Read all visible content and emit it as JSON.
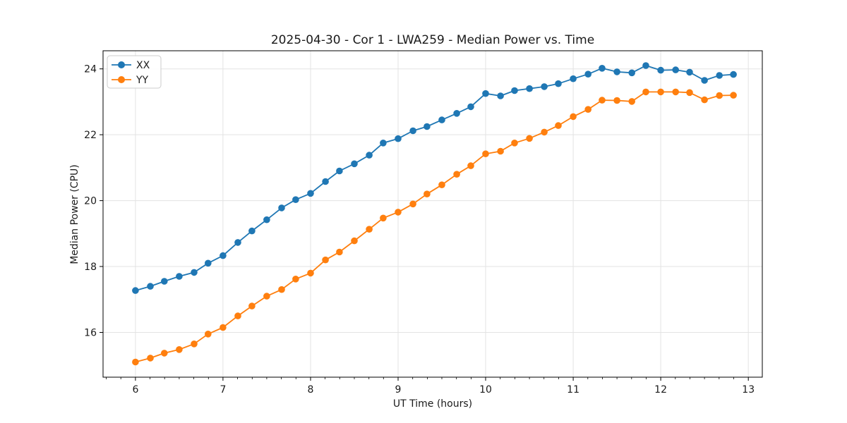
{
  "chart_data": {
    "type": "line",
    "title": "2025-04-30 - Cor 1 - LWA259 - Median Power vs. Time",
    "xlabel": "UT Time (hours)",
    "ylabel": "Median Power (CPU)",
    "xlim": [
      5.63,
      13.16
    ],
    "ylim": [
      14.64,
      24.55
    ],
    "xticks": [
      6,
      7,
      8,
      9,
      10,
      11,
      12,
      13
    ],
    "yticks": [
      16,
      18,
      20,
      22,
      24
    ],
    "x_minor_subdivisions": 6,
    "grid": true,
    "grid_color": "#e3e3e3",
    "axis_color": "#000000",
    "text_color": "#1a1a1a",
    "legend_position": "upper-left",
    "marker": "circle",
    "x": [
      6.0,
      6.17,
      6.33,
      6.5,
      6.67,
      6.83,
      7.0,
      7.17,
      7.33,
      7.5,
      7.67,
      7.83,
      8.0,
      8.17,
      8.33,
      8.5,
      8.67,
      8.83,
      9.0,
      9.17,
      9.33,
      9.5,
      9.67,
      9.83,
      10.0,
      10.17,
      10.33,
      10.5,
      10.67,
      10.83,
      11.0,
      11.17,
      11.33,
      11.5,
      11.67,
      11.83,
      12.0,
      12.17,
      12.33,
      12.5,
      12.67,
      12.83
    ],
    "series": [
      {
        "name": "XX",
        "color": "#1f77b4",
        "values": [
          17.27,
          17.4,
          17.55,
          17.7,
          17.82,
          18.1,
          18.33,
          18.73,
          19.08,
          19.42,
          19.78,
          20.03,
          20.22,
          20.58,
          20.9,
          21.12,
          21.38,
          21.75,
          21.88,
          22.12,
          22.25,
          22.45,
          22.65,
          22.85,
          23.25,
          23.18,
          23.34,
          23.4,
          23.46,
          23.55,
          23.7,
          23.84,
          24.02,
          23.91,
          23.88,
          24.1,
          23.96,
          23.97,
          23.9,
          23.65,
          23.8,
          23.83
        ]
      },
      {
        "name": "YY",
        "color": "#ff7f0e",
        "values": [
          15.1,
          15.22,
          15.37,
          15.48,
          15.65,
          15.95,
          16.15,
          16.5,
          16.8,
          17.1,
          17.3,
          17.62,
          17.8,
          18.2,
          18.44,
          18.78,
          19.13,
          19.47,
          19.65,
          19.9,
          20.2,
          20.48,
          20.8,
          21.06,
          21.42,
          21.5,
          21.75,
          21.89,
          22.08,
          22.28,
          22.55,
          22.77,
          23.05,
          23.04,
          23.01,
          23.3,
          23.3,
          23.3,
          23.28,
          23.06,
          23.19,
          23.2
        ]
      }
    ]
  }
}
